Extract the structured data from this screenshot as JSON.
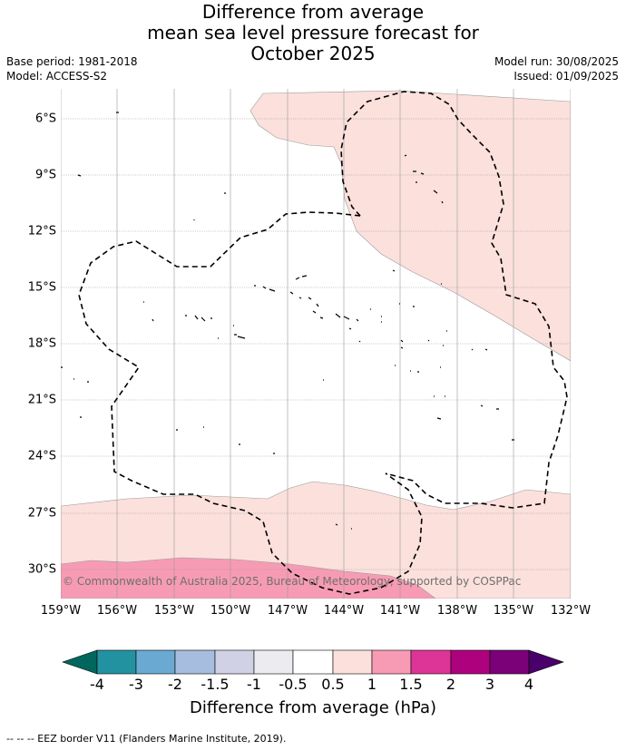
{
  "title": {
    "line1": "Difference from average",
    "line2": "mean sea level pressure forecast for",
    "line3": "October 2025"
  },
  "meta": {
    "base_period": "Base period: 1981-2018",
    "model": "Model: ACCESS-S2",
    "model_run": "Model run: 30/08/2025",
    "issued": "Issued: 01/09/2025"
  },
  "map": {
    "copyright": "© Commonwealth of Australia 2025, Bureau of Meteorology, supported by COSPPac",
    "lat_labels": [
      "6°S",
      "9°S",
      "12°S",
      "15°S",
      "18°S",
      "21°S",
      "24°S",
      "27°S",
      "30°S"
    ],
    "lon_labels": [
      "159°W",
      "156°W",
      "153°W",
      "150°W",
      "147°W",
      "144°W",
      "141°W",
      "138°W",
      "135°W",
      "132°W"
    ],
    "colors": {
      "pale_pink": "#fbe0dc",
      "pink": "#f79bb4",
      "dark_pink": "#dd3497",
      "grid": "#999999"
    }
  },
  "colorbar": {
    "ticks": [
      "-4",
      "-3",
      "-2",
      "-1.5",
      "-1",
      "-0.5",
      "0.5",
      "1",
      "1.5",
      "2",
      "3",
      "4"
    ],
    "colors": [
      "#01665e",
      "#2292a0",
      "#6aa9d2",
      "#a7bddf",
      "#d1d1e6",
      "#ececf0",
      "#ffffff",
      "#fbe0dc",
      "#f79bb4",
      "#dd3497",
      "#ae017e",
      "#7a0177",
      "#49006a"
    ],
    "label": "Difference from average (hPa)"
  },
  "footnote": "--  --  -- EEZ border V11 (Flanders Marine Institute, 2019)."
}
